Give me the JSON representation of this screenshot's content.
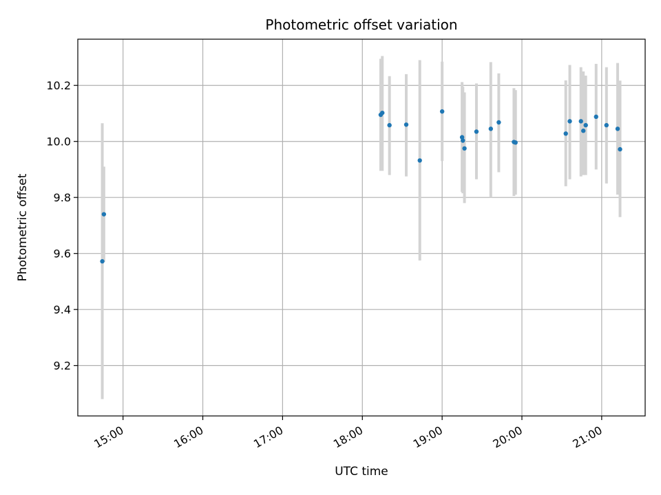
{
  "chart_data": {
    "type": "scatter",
    "title": "Photometric offset variation",
    "xlabel": "UTC time",
    "ylabel": "Photometric offset",
    "x_tick_labels": [
      "15:00",
      "16:00",
      "17:00",
      "18:00",
      "19:00",
      "20:00",
      "21:00"
    ],
    "x_ticks_hours": [
      15,
      16,
      17,
      18,
      19,
      20,
      21
    ],
    "y_ticks": [
      9.2,
      9.4,
      9.6,
      9.8,
      10.0,
      10.2
    ],
    "xlim_hours": [
      14.433,
      21.545
    ],
    "ylim": [
      9.02,
      10.365
    ],
    "grid": true,
    "colors": {
      "point": "#1f77b4",
      "errorbar": "#d3d3d3",
      "grid": "#b0b0b0"
    },
    "points": [
      {
        "t": 14.74,
        "y": 9.572,
        "err_low": 9.08,
        "err_high": 10.065
      },
      {
        "t": 14.76,
        "y": 9.74,
        "err_low": 9.57,
        "err_high": 9.91
      },
      {
        "t": 18.23,
        "y": 10.095,
        "err_low": 9.895,
        "err_high": 10.295
      },
      {
        "t": 18.25,
        "y": 10.102,
        "err_low": 9.895,
        "err_high": 10.305
      },
      {
        "t": 18.34,
        "y": 10.058,
        "err_low": 9.88,
        "err_high": 10.233
      },
      {
        "t": 18.55,
        "y": 10.06,
        "err_low": 9.875,
        "err_high": 10.24
      },
      {
        "t": 18.72,
        "y": 9.932,
        "err_low": 9.575,
        "err_high": 10.29
      },
      {
        "t": 19.0,
        "y": 10.107,
        "err_low": 9.93,
        "err_high": 10.285
      },
      {
        "t": 19.25,
        "y": 10.015,
        "err_low": 9.82,
        "err_high": 10.212
      },
      {
        "t": 19.26,
        "y": 10.003,
        "err_low": 9.815,
        "err_high": 10.195
      },
      {
        "t": 19.28,
        "y": 9.975,
        "err_low": 9.78,
        "err_high": 10.175
      },
      {
        "t": 19.43,
        "y": 10.035,
        "err_low": 9.865,
        "err_high": 10.207
      },
      {
        "t": 19.61,
        "y": 10.045,
        "err_low": 9.8,
        "err_high": 10.283
      },
      {
        "t": 19.71,
        "y": 10.068,
        "err_low": 9.89,
        "err_high": 10.243
      },
      {
        "t": 19.9,
        "y": 9.998,
        "err_low": 9.805,
        "err_high": 10.19
      },
      {
        "t": 19.92,
        "y": 9.996,
        "err_low": 9.81,
        "err_high": 10.183
      },
      {
        "t": 20.55,
        "y": 10.028,
        "err_low": 9.84,
        "err_high": 10.218
      },
      {
        "t": 20.6,
        "y": 10.072,
        "err_low": 9.865,
        "err_high": 10.273
      },
      {
        "t": 20.74,
        "y": 10.072,
        "err_low": 9.875,
        "err_high": 10.265
      },
      {
        "t": 20.77,
        "y": 10.038,
        "err_low": 9.88,
        "err_high": 10.25
      },
      {
        "t": 20.8,
        "y": 10.058,
        "err_low": 9.88,
        "err_high": 10.235
      },
      {
        "t": 20.93,
        "y": 10.088,
        "err_low": 9.9,
        "err_high": 10.277
      },
      {
        "t": 21.06,
        "y": 10.058,
        "err_low": 9.85,
        "err_high": 10.265
      },
      {
        "t": 21.2,
        "y": 10.045,
        "err_low": 9.81,
        "err_high": 10.28
      },
      {
        "t": 21.23,
        "y": 9.972,
        "err_low": 9.73,
        "err_high": 10.217
      }
    ]
  }
}
